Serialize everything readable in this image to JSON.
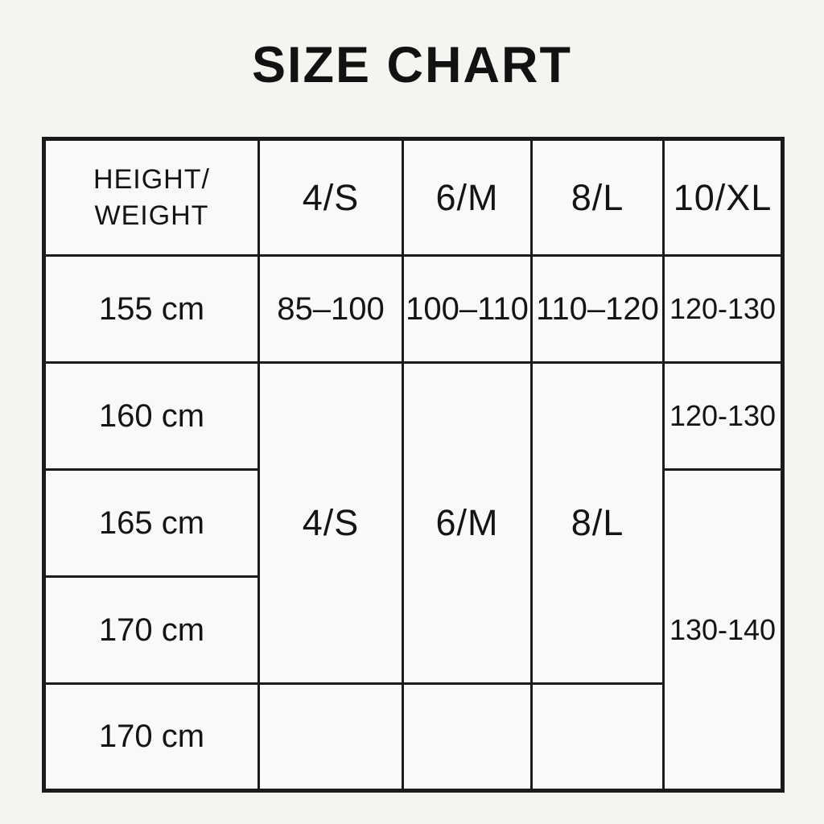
{
  "page": {
    "background_color": "#f5f4f1",
    "text_color": "#141414",
    "border_color": "#1a1a1a",
    "cell_background": "#f9f9f7"
  },
  "table": {
    "header_display": "HEIGHT/\nWEIGHT"
  },
  "chart_data": {
    "type": "table",
    "title": "SIZE CHART",
    "columns": [
      "HEIGHT/WEIGHT",
      "4/S",
      "6/M",
      "8/L",
      "10/XL"
    ],
    "cells": [
      [
        "155 cm",
        "85–100",
        "100–110",
        "110–120",
        "120-130"
      ],
      [
        "160 cm",
        "4/S",
        "6/M",
        "8/L",
        "120-130"
      ],
      [
        "165 cm",
        "4/S",
        "6/M",
        "8/L",
        "130-140"
      ],
      [
        "170 cm",
        "4/S",
        "6/M",
        "8/L",
        "130-140"
      ],
      [
        "170 cm",
        "",
        "",
        "",
        "130-140"
      ]
    ],
    "merged_regions": [
      {
        "value": "4/S",
        "column": "4/S",
        "data_rows_spanned": [
          2,
          3,
          4
        ]
      },
      {
        "value": "6/M",
        "column": "6/M",
        "data_rows_spanned": [
          2,
          3,
          4
        ]
      },
      {
        "value": "8/L",
        "column": "8/L",
        "data_rows_spanned": [
          2,
          3,
          4
        ]
      },
      {
        "value": "130-140",
        "column": "10/XL",
        "data_rows_spanned": [
          3,
          4,
          5
        ]
      }
    ]
  }
}
